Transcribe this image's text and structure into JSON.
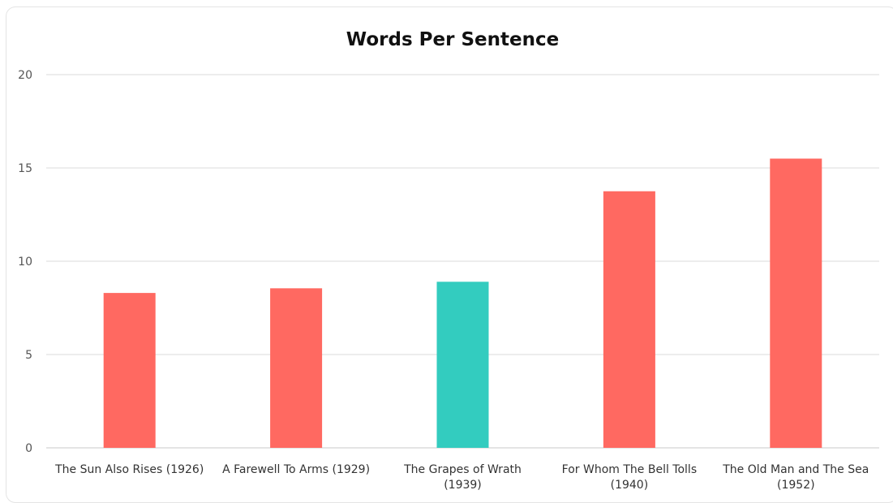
{
  "chart_data": {
    "type": "bar",
    "title": "Words Per Sentence",
    "xlabel": "",
    "ylabel": "",
    "ylim": [
      0,
      20
    ],
    "yticks": [
      0,
      5,
      10,
      15,
      20
    ],
    "grid": true,
    "categories": [
      [
        "The Sun Also Rises (1926)"
      ],
      [
        "A Farewell To Arms (1929)"
      ],
      [
        "The Grapes of Wrath",
        "(1939)"
      ],
      [
        "For Whom The Bell Tolls",
        "(1940)"
      ],
      [
        "The Old Man and The Sea",
        "(1952)"
      ]
    ],
    "values": [
      8.3,
      8.55,
      8.9,
      13.75,
      15.5
    ],
    "colors": [
      "#FF6961",
      "#FF6961",
      "#33CCBF",
      "#FF6961",
      "#FF6961"
    ]
  }
}
